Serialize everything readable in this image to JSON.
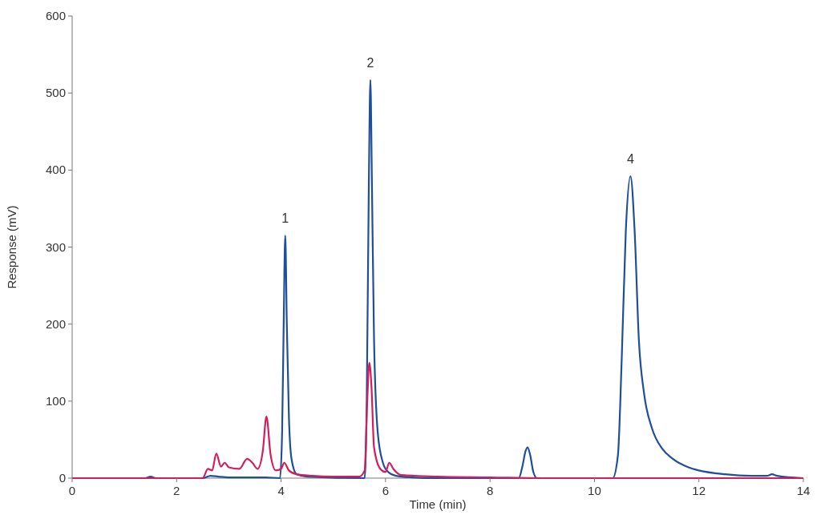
{
  "chart_data": {
    "type": "line",
    "xlabel": "Time (min)",
    "ylabel": "Response (mV)",
    "xlim": [
      0,
      14
    ],
    "xticks": [
      0,
      2,
      4,
      6,
      8,
      10,
      12,
      14
    ],
    "ylim": [
      0,
      600
    ],
    "yticks": [
      0,
      100,
      200,
      300,
      400,
      500,
      600
    ],
    "grid": false,
    "marker": "none",
    "line_style": "solid",
    "series": [
      {
        "color": "#1f4e9a",
        "x": [
          0,
          1.4,
          1.5,
          1.6,
          2.5,
          2.65,
          2.8,
          3.0,
          3.7,
          3.98,
          4.02,
          4.05,
          4.08,
          4.11,
          4.15,
          4.2,
          4.3,
          4.5,
          5.6,
          5.64,
          5.68,
          5.71,
          5.74,
          5.78,
          5.85,
          5.95,
          6.05,
          6.2,
          6.5,
          7,
          8.55,
          8.62,
          8.68,
          8.72,
          8.77,
          8.83,
          8.9,
          10.35,
          10.45,
          10.52,
          10.6,
          10.69,
          10.77,
          10.85,
          10.95,
          11.1,
          11.3,
          11.5,
          11.8,
          12,
          12.5,
          13,
          13.3,
          13.4,
          13.5,
          14
        ],
        "values": [
          0,
          0,
          2,
          0,
          0,
          3,
          2,
          1,
          1,
          0,
          60,
          200,
          315,
          200,
          80,
          25,
          5,
          2,
          0,
          100,
          380,
          517,
          380,
          180,
          60,
          20,
          8,
          3,
          1,
          0,
          0,
          15,
          35,
          40,
          30,
          8,
          0,
          0,
          30,
          150,
          320,
          392,
          320,
          180,
          110,
          65,
          38,
          25,
          14,
          10,
          5,
          3,
          3,
          5,
          3,
          0
        ]
      },
      {
        "color": "#d41e5a",
        "x": [
          0,
          2.5,
          2.6,
          2.68,
          2.76,
          2.85,
          2.92,
          3.0,
          3.2,
          3.35,
          3.45,
          3.55,
          3.65,
          3.72,
          3.8,
          3.9,
          4.0,
          4.06,
          4.15,
          4.3,
          4.6,
          5.0,
          5.5,
          5.6,
          5.65,
          5.69,
          5.73,
          5.78,
          5.9,
          6.0,
          6.07,
          6.15,
          6.3,
          7,
          8,
          9,
          14
        ],
        "values": [
          0,
          0,
          12,
          10,
          32,
          15,
          20,
          14,
          12,
          25,
          20,
          12,
          35,
          80,
          30,
          10,
          12,
          20,
          10,
          5,
          3,
          2,
          2,
          10,
          100,
          150,
          120,
          40,
          12,
          8,
          20,
          12,
          4,
          2,
          1,
          0,
          0
        ]
      }
    ],
    "annotations": [
      {
        "text": "1",
        "x": 4.08,
        "y": 315
      },
      {
        "text": "2",
        "x": 5.71,
        "y": 517
      },
      {
        "text": "4",
        "x": 10.69,
        "y": 392
      }
    ]
  }
}
